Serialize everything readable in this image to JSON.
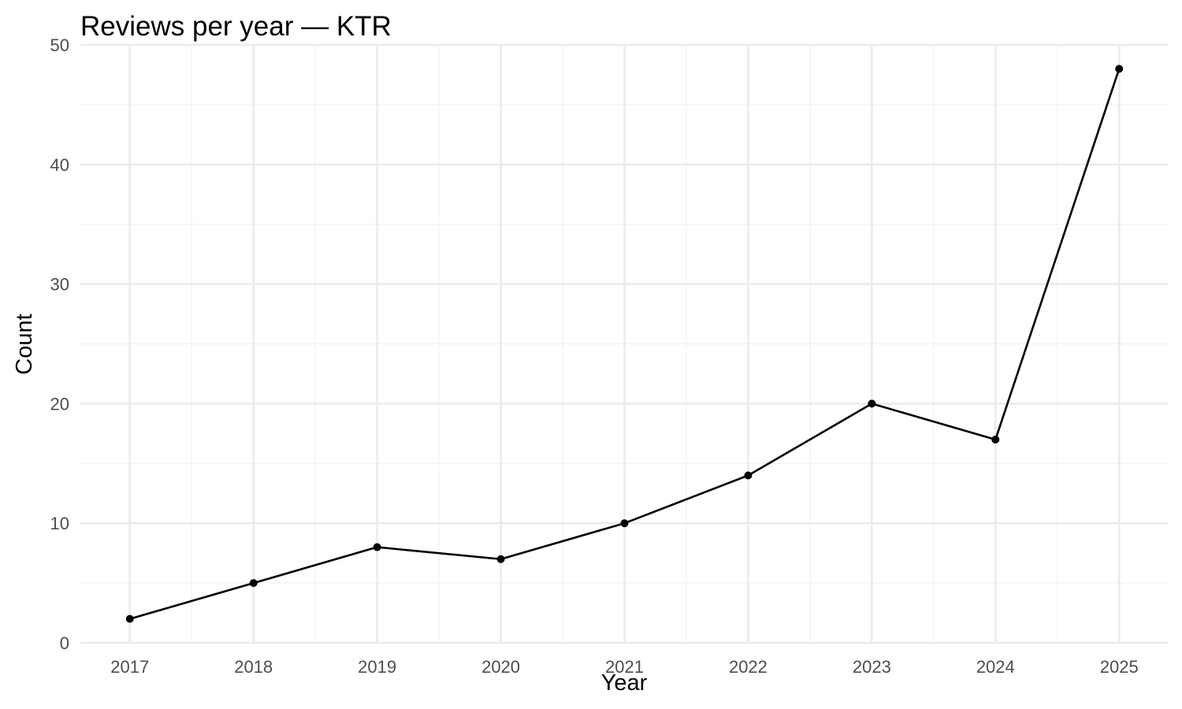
{
  "chart_data": {
    "type": "line",
    "title": "Reviews per year — KTR",
    "xlabel": "Year",
    "ylabel": "Count",
    "x": [
      2017,
      2018,
      2019,
      2020,
      2021,
      2022,
      2023,
      2024,
      2025
    ],
    "series": [
      {
        "values": [
          2,
          5,
          8,
          7,
          10,
          14,
          20,
          17,
          48
        ],
        "color": "#000000"
      }
    ],
    "xlim": [
      2016.6,
      2025.4
    ],
    "ylim": [
      0,
      50
    ],
    "y_ticks": [
      0,
      10,
      20,
      30,
      40,
      50
    ],
    "x_ticks": [
      2017,
      2018,
      2019,
      2020,
      2021,
      2022,
      2023,
      2024,
      2025
    ],
    "grid": true,
    "legend": "none"
  }
}
